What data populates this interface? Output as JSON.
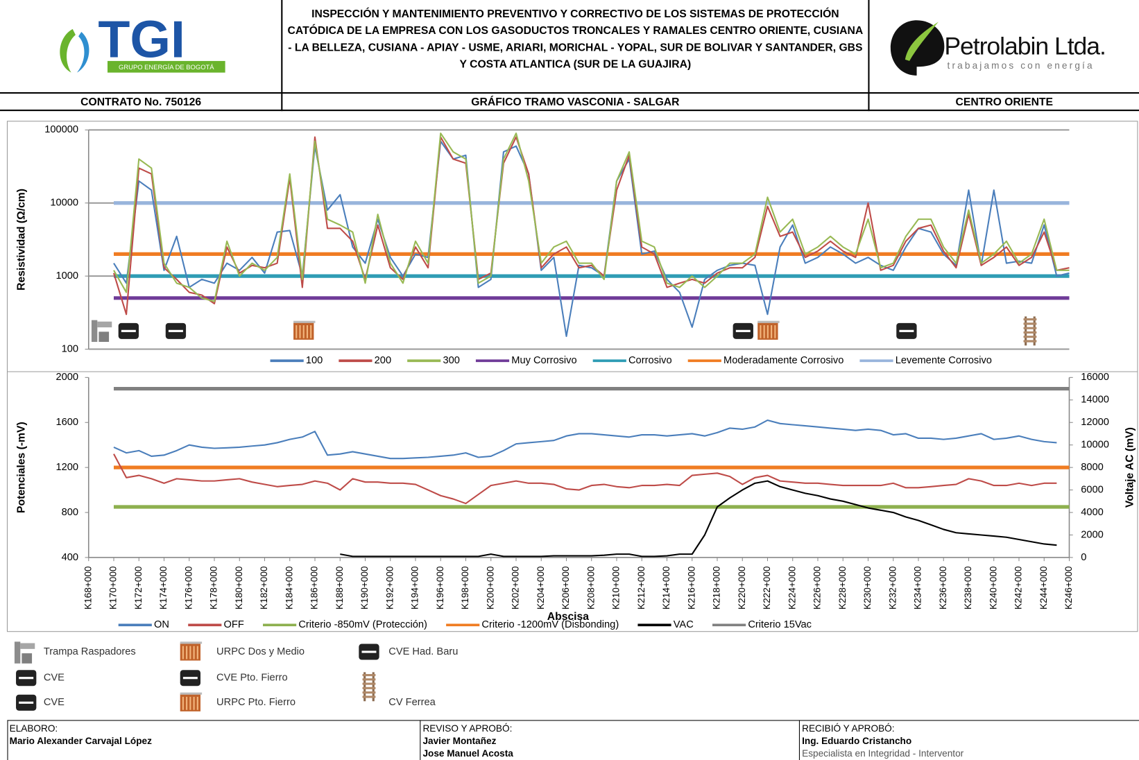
{
  "header": {
    "logos": {
      "left": "TGI",
      "left_sub": "GRUPO ENERGÍA DE BOGOTÁ",
      "right": "Petrolabin Ltda.",
      "right_sub": "trabajamos con energía"
    },
    "title": "INSPECCIÓN Y MANTENIMIENTO PREVENTIVO Y CORRECTIVO DE LOS SISTEMAS DE PROTECCIÓN CATÓDICA DE LA EMPRESA CON LOS GASODUCTOS TRONCALES Y RAMALES CENTRO ORIENTE, CUSIANA - LA BELLEZA, CUSIANA - APIAY - USME, ARIARI, MORICHAL - YOPAL, SUR DE BOLIVAR Y SANTANDER, GBS Y COSTA ATLANTICA (SUR DE LA GUAJIRA)",
    "contract": "CONTRATO No. 750126",
    "subtitle": "GRÁFICO TRAMO VASCONIA - SALGAR",
    "region": "CENTRO ORIENTE"
  },
  "chart_data": [
    {
      "type": "line",
      "y_label": "Resistividad (Ω/cm)",
      "yscale": "log",
      "grid": true,
      "xlim": [
        168,
        246
      ],
      "ylim": [
        100,
        100000
      ],
      "yticks": [
        100,
        1000,
        10000,
        100000
      ],
      "x": [
        170,
        171,
        172,
        173,
        174,
        175,
        176,
        177,
        178,
        179,
        180,
        181,
        182,
        183,
        184,
        185,
        186,
        187,
        188,
        189,
        190,
        191,
        192,
        193,
        194,
        195,
        196,
        197,
        198,
        199,
        200,
        201,
        202,
        203,
        204,
        205,
        206,
        207,
        208,
        209,
        210,
        211,
        212,
        213,
        214,
        215,
        216,
        217,
        218,
        219,
        220,
        221,
        222,
        223,
        224,
        225,
        226,
        227,
        228,
        229,
        230,
        231,
        232,
        233,
        234,
        235,
        236,
        237,
        238,
        239,
        240,
        241,
        242,
        243,
        244,
        245,
        246
      ],
      "series": [
        {
          "name": "100",
          "color": "#4a7ebb",
          "width": 2,
          "values": [
            1500,
            800,
            20000,
            15000,
            1200,
            3500,
            700,
            900,
            800,
            1500,
            1200,
            1800,
            1100,
            4000,
            4200,
            1000,
            60000,
            8000,
            13000,
            2500,
            1500,
            6000,
            1800,
            1000,
            2000,
            1800,
            70000,
            40000,
            45000,
            700,
            900,
            50000,
            60000,
            25000,
            1200,
            1800,
            150,
            1400,
            1300,
            1000,
            20000,
            40000,
            2000,
            2200,
            900,
            600,
            200,
            900,
            1200,
            1400,
            1500,
            1400,
            300,
            2500,
            5000,
            1500,
            1800,
            2500,
            2000,
            1500,
            1800,
            1400,
            1200,
            2500,
            4500,
            4000,
            2000,
            1400,
            15000,
            1400,
            15000,
            1500,
            1600,
            1500,
            5000,
            1000,
            1100
          ]
        },
        {
          "name": "200",
          "color": "#be4b48",
          "width": 2,
          "values": [
            1100,
            300,
            30000,
            25000,
            1300,
            900,
            600,
            550,
            420,
            2500,
            1100,
            1400,
            1300,
            1500,
            22000,
            700,
            80000,
            4500,
            4500,
            3000,
            900,
            5000,
            1300,
            900,
            2500,
            1300,
            80000,
            40000,
            35000,
            900,
            1100,
            35000,
            80000,
            25000,
            1300,
            2000,
            2500,
            1300,
            1400,
            1000,
            15000,
            45000,
            2500,
            2000,
            700,
            800,
            900,
            800,
            1100,
            1300,
            1300,
            1800,
            9000,
            3500,
            4000,
            1800,
            2200,
            3000,
            2200,
            1800,
            10000,
            1200,
            1400,
            3000,
            4500,
            5000,
            2200,
            1300,
            7000,
            1400,
            1800,
            2500,
            1400,
            1800,
            4000,
            1200,
            1300
          ]
        },
        {
          "name": "300",
          "color": "#98b954",
          "width": 2,
          "values": [
            1200,
            600,
            40000,
            30000,
            1500,
            800,
            700,
            500,
            450,
            3000,
            1000,
            1500,
            1200,
            1800,
            25000,
            900,
            70000,
            6000,
            5000,
            4000,
            800,
            7000,
            1500,
            800,
            3000,
            1500,
            90000,
            50000,
            40000,
            800,
            1000,
            40000,
            90000,
            20000,
            1500,
            2500,
            3000,
            1500,
            1500,
            900,
            20000,
            50000,
            3000,
            2500,
            800,
            700,
            1000,
            700,
            1000,
            1500,
            1500,
            2000,
            12000,
            4000,
            6000,
            2000,
            2500,
            3500,
            2500,
            2000,
            6000,
            1300,
            1500,
            3500,
            6000,
            6000,
            2500,
            1500,
            8000,
            1500,
            2000,
            3000,
            1500,
            2000,
            6000,
            1200,
            1200
          ]
        },
        {
          "name": "Muy Corrosivo",
          "color": "#6f3b98",
          "width": 5,
          "x": [
            170,
            246
          ],
          "values": [
            500,
            500
          ]
        },
        {
          "name": "Corrosivo",
          "color": "#2e9cb4",
          "width": 5,
          "x": [
            170,
            246
          ],
          "values": [
            1000,
            1000
          ]
        },
        {
          "name": "Moderadamente Corrosivo",
          "color": "#f07c22",
          "width": 5,
          "x": [
            170,
            246
          ],
          "values": [
            2000,
            2000
          ]
        },
        {
          "name": "Levemente Corrosivo",
          "color": "#98b4dc",
          "width": 5,
          "x": [
            170,
            246
          ],
          "values": [
            10000,
            10000
          ]
        }
      ]
    },
    {
      "type": "line",
      "y_label": "Potenciales (-mV)",
      "y2_label": "Voltaje AC (mV)",
      "x_label": "Abscisa",
      "grid": false,
      "xlim": [
        168,
        246
      ],
      "ylim": [
        400,
        2000
      ],
      "yticks": [
        400,
        800,
        1200,
        1600,
        2000
      ],
      "y2lim": [
        0,
        16000
      ],
      "y2ticks": [
        0,
        2000,
        4000,
        6000,
        8000,
        10000,
        12000,
        14000,
        16000
      ],
      "xticks": [
        {
          "value": 168,
          "label": "K168+000"
        },
        {
          "value": 170,
          "label": "K170+000"
        },
        {
          "value": 172,
          "label": "K172+000"
        },
        {
          "value": 174,
          "label": "K174+000"
        },
        {
          "value": 176,
          "label": "K176+000"
        },
        {
          "value": 178,
          "label": "K178+000"
        },
        {
          "value": 180,
          "label": "K180+000"
        },
        {
          "value": 182,
          "label": "K182+000"
        },
        {
          "value": 184,
          "label": "K184+000"
        },
        {
          "value": 186,
          "label": "K186+000"
        },
        {
          "value": 188,
          "label": "K188+000"
        },
        {
          "value": 190,
          "label": "K190+000"
        },
        {
          "value": 192,
          "label": "K192+000"
        },
        {
          "value": 194,
          "label": "K194+000"
        },
        {
          "value": 196,
          "label": "K196+000"
        },
        {
          "value": 198,
          "label": "K198+000"
        },
        {
          "value": 200,
          "label": "K200+000"
        },
        {
          "value": 202,
          "label": "K202+000"
        },
        {
          "value": 204,
          "label": "K204+000"
        },
        {
          "value": 206,
          "label": "K206+000"
        },
        {
          "value": 208,
          "label": "K208+000"
        },
        {
          "value": 210,
          "label": "K210+000"
        },
        {
          "value": 212,
          "label": "K212+000"
        },
        {
          "value": 214,
          "label": "K214+000"
        },
        {
          "value": 216,
          "label": "K216+000"
        },
        {
          "value": 218,
          "label": "K218+000"
        },
        {
          "value": 220,
          "label": "K220+000"
        },
        {
          "value": 222,
          "label": "K222+000"
        },
        {
          "value": 224,
          "label": "K224+000"
        },
        {
          "value": 226,
          "label": "K226+000"
        },
        {
          "value": 228,
          "label": "K228+000"
        },
        {
          "value": 230,
          "label": "K230+000"
        },
        {
          "value": 232,
          "label": "K232+000"
        },
        {
          "value": 234,
          "label": "K234+000"
        },
        {
          "value": 236,
          "label": "K236+000"
        },
        {
          "value": 238,
          "label": "K238+000"
        },
        {
          "value": 240,
          "label": "K240+000"
        },
        {
          "value": 242,
          "label": "K242+000"
        },
        {
          "value": 244,
          "label": "K244+000"
        },
        {
          "value": 246,
          "label": "K246+000"
        }
      ],
      "x": [
        170,
        171,
        172,
        173,
        174,
        175,
        176,
        177,
        178,
        179,
        180,
        181,
        182,
        183,
        184,
        185,
        186,
        187,
        188,
        189,
        190,
        191,
        192,
        193,
        194,
        195,
        196,
        197,
        198,
        199,
        200,
        201,
        202,
        203,
        204,
        205,
        206,
        207,
        208,
        209,
        210,
        211,
        212,
        213,
        214,
        215,
        216,
        217,
        218,
        219,
        220,
        221,
        222,
        223,
        224,
        225,
        226,
        227,
        228,
        229,
        230,
        231,
        232,
        233,
        234,
        235,
        236,
        237,
        238,
        239,
        240,
        241,
        242,
        243,
        244,
        245
      ],
      "series": [
        {
          "name": "ON",
          "color": "#4a7ebb",
          "width": 2,
          "values": [
            1380,
            1330,
            1350,
            1300,
            1310,
            1350,
            1400,
            1380,
            1370,
            1375,
            1380,
            1390,
            1400,
            1420,
            1450,
            1470,
            1520,
            1310,
            1320,
            1340,
            1320,
            1300,
            1280,
            1280,
            1285,
            1290,
            1300,
            1310,
            1330,
            1290,
            1300,
            1350,
            1410,
            1420,
            1430,
            1440,
            1480,
            1500,
            1500,
            1490,
            1480,
            1470,
            1490,
            1490,
            1480,
            1490,
            1500,
            1480,
            1510,
            1550,
            1540,
            1560,
            1620,
            1590,
            1580,
            1570,
            1560,
            1550,
            1540,
            1530,
            1540,
            1530,
            1490,
            1500,
            1460,
            1460,
            1450,
            1460,
            1480,
            1500,
            1450,
            1460,
            1480,
            1450,
            1430,
            1420
          ]
        },
        {
          "name": "OFF",
          "color": "#be4b48",
          "width": 2,
          "values": [
            1320,
            1110,
            1130,
            1100,
            1060,
            1100,
            1090,
            1080,
            1080,
            1090,
            1100,
            1070,
            1050,
            1030,
            1040,
            1050,
            1080,
            1060,
            1000,
            1100,
            1070,
            1070,
            1060,
            1060,
            1050,
            1000,
            950,
            920,
            880,
            960,
            1040,
            1060,
            1080,
            1060,
            1060,
            1050,
            1010,
            1000,
            1040,
            1050,
            1030,
            1020,
            1040,
            1040,
            1050,
            1040,
            1130,
            1140,
            1150,
            1120,
            1050,
            1110,
            1130,
            1080,
            1070,
            1060,
            1060,
            1050,
            1040,
            1040,
            1040,
            1040,
            1060,
            1020,
            1020,
            1030,
            1040,
            1050,
            1100,
            1080,
            1040,
            1040,
            1060,
            1040,
            1060,
            1060
          ]
        },
        {
          "name": "Criterio -850mV (Protección)",
          "color": "#8db04e",
          "width": 5,
          "x": [
            170,
            246
          ],
          "values": [
            850,
            850
          ]
        },
        {
          "name": "Criterio -1200mV (Disbonding)",
          "color": "#f07c22",
          "width": 5,
          "x": [
            170,
            246
          ],
          "values": [
            1200,
            1200
          ]
        },
        {
          "name": "VAC",
          "color": "#000000",
          "width": 2,
          "axis": "y2",
          "values": [
            null,
            null,
            null,
            null,
            null,
            null,
            null,
            null,
            null,
            null,
            null,
            null,
            null,
            null,
            null,
            null,
            null,
            null,
            300,
            100,
            100,
            100,
            100,
            100,
            100,
            100,
            100,
            100,
            100,
            100,
            300,
            100,
            100,
            100,
            100,
            150,
            150,
            150,
            150,
            200,
            300,
            300,
            100,
            100,
            150,
            300,
            300,
            2000,
            4500,
            5300,
            6000,
            6600,
            6800,
            6300,
            6000,
            5700,
            5500,
            5200,
            5000,
            4700,
            4400,
            4200,
            4000,
            3600,
            3300,
            2900,
            2500,
            2200,
            2100,
            2000,
            1900,
            1800,
            1600,
            1400,
            1200,
            1100
          ]
        },
        {
          "name": "Criterio 15Vac",
          "color": "#808080",
          "width": 5,
          "axis": "y2",
          "x": [
            170,
            246
          ],
          "values": [
            15000,
            15000
          ]
        }
      ]
    }
  ],
  "legend_icons": [
    {
      "icon": "trampa",
      "label": "Trampa Raspadores"
    },
    {
      "icon": "cve",
      "label": "CVE"
    },
    {
      "icon": "cve",
      "label": "CVE"
    },
    {
      "icon": "urpc",
      "label": "URPC Dos y Medio"
    },
    {
      "icon": "cve",
      "label": "CVE Pto. Fierro"
    },
    {
      "icon": "urpc",
      "label": "URPC Pto. Fierro"
    },
    {
      "icon": "cve",
      "label": "CVE Had. Baru"
    },
    {
      "icon": "ferrea",
      "label": "CV Ferrea"
    }
  ],
  "footer": {
    "prepared_label": "ELABORO:",
    "prepared_by": "Mario Alexander Carvajal López",
    "reviewed_label": "REVISO Y APROBÓ:",
    "reviewed_by": [
      "Javier Montañez",
      "Jose Manuel Acosta"
    ],
    "received_label": "RECIBIÓ Y APROBÓ:",
    "received_by": "Ing. Eduardo Cristancho",
    "received_role": "Especialista en Integridad - Interventor"
  }
}
